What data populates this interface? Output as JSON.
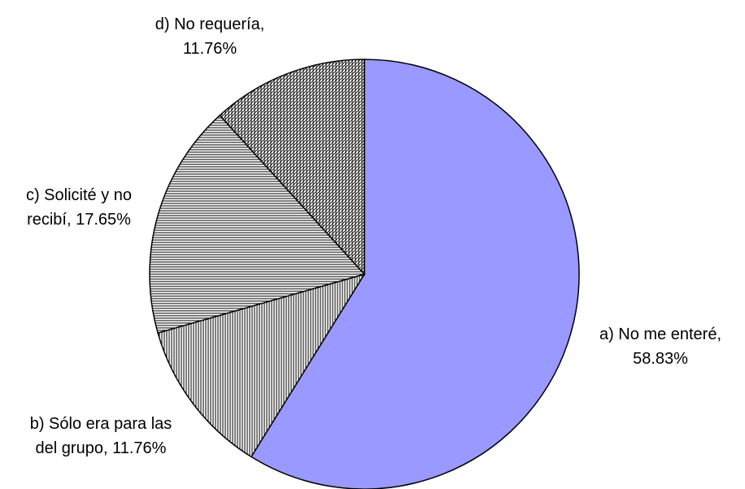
{
  "chart_data": {
    "type": "pie",
    "categories": [
      "a) No me enteré,",
      "b) Sólo era para las del grupo,",
      "c) Solicité y no recibí,",
      "d) No requería,"
    ],
    "values": [
      58.83,
      11.76,
      17.65,
      11.76
    ],
    "value_labels": [
      "58.83%",
      "11.76%",
      "17.65%",
      "11.76%"
    ],
    "fills": [
      "#9999ff",
      "vertical",
      "horizontal",
      "diagonal"
    ]
  }
}
